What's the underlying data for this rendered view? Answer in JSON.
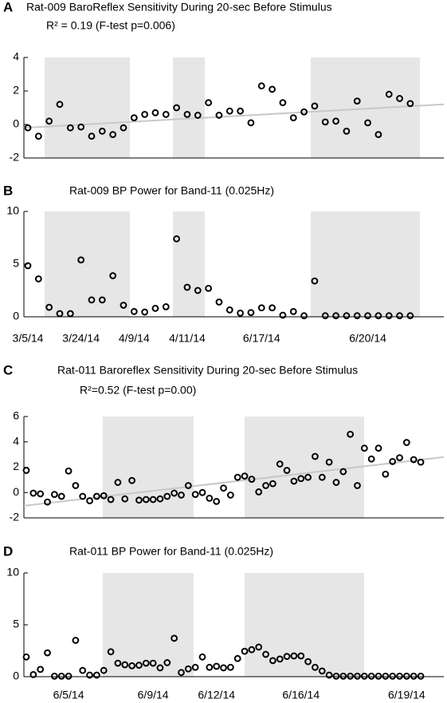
{
  "chart_data": [
    {
      "type": "scatter",
      "panel": "A",
      "title": "Rat-009 BaroReflex Sensitivity During 20-sec Before Stimulus",
      "subtitle": "R² = 0.19 (F-test p=0.006)",
      "values": [
        -0.2,
        -0.7,
        0.2,
        1.2,
        -0.2,
        -0.15,
        -0.7,
        -0.4,
        -0.6,
        -0.2,
        0.4,
        0.6,
        0.7,
        0.6,
        1.0,
        0.6,
        0.55,
        1.3,
        0.55,
        0.8,
        0.8,
        0.1,
        2.3,
        2.1,
        1.3,
        0.4,
        0.75,
        1.1,
        0.15,
        0.2,
        -0.4,
        1.4,
        0.1,
        -0.6,
        1.8,
        1.55,
        1.25
      ],
      "trend": {
        "start": -0.2,
        "end": 1.2,
        "color": "#c8c8c8"
      },
      "ylim": [
        -2,
        4
      ],
      "yticks": [
        -2,
        0,
        2,
        4
      ],
      "color": "#000000"
    },
    {
      "type": "scatter",
      "panel": "B",
      "title": "Rat-009 BP Power for Band-11 (0.025Hz)",
      "categories": [
        "3/5/14",
        null,
        null,
        null,
        null,
        "3/24/14",
        null,
        null,
        null,
        null,
        "4/9/14",
        null,
        null,
        null,
        null,
        "4/11/14",
        null,
        null,
        null,
        null,
        null,
        null,
        "6/17/14",
        null,
        null,
        null,
        null,
        null,
        null,
        null,
        null,
        null,
        "6/20/14",
        null,
        null,
        null,
        null
      ],
      "values": [
        4.85,
        3.6,
        0.9,
        0.3,
        0.3,
        5.4,
        1.6,
        1.6,
        3.9,
        1.1,
        0.5,
        0.45,
        0.8,
        0.95,
        7.4,
        2.8,
        2.5,
        2.7,
        1.4,
        0.65,
        0.35,
        0.4,
        0.85,
        0.85,
        0.15,
        0.5,
        0.1,
        3.4,
        0.1,
        0.1,
        0.1,
        0.1,
        0.1,
        0.1,
        0.1,
        0.1,
        0.1
      ],
      "ylim": [
        0,
        10
      ],
      "yticks": [
        0,
        5,
        10
      ],
      "color": "#000000"
    },
    {
      "type": "scatter",
      "panel": "C",
      "title": "Rat-011 Baroreflex Sensitivity During 20-sec Before Stimulus",
      "subtitle": "R²=0.52 (F-test p=0.00)",
      "values": [
        1.75,
        -0.05,
        -0.1,
        -0.75,
        -0.15,
        -0.3,
        1.7,
        0.55,
        -0.3,
        -0.65,
        -0.3,
        -0.25,
        -0.55,
        0.8,
        -0.5,
        0.95,
        -0.6,
        -0.55,
        -0.55,
        -0.5,
        -0.3,
        -0.05,
        -0.2,
        0.55,
        -0.15,
        0,
        -0.45,
        -0.7,
        0.35,
        -0.2,
        1.2,
        1.3,
        1.05,
        0.05,
        0.55,
        0.7,
        2.25,
        1.75,
        0.9,
        1.1,
        1.2,
        2.85,
        1.2,
        2.4,
        0.8,
        1.65,
        4.6,
        0.55,
        3.5,
        2.65,
        3.5,
        1.45,
        2.45,
        2.75,
        3.95,
        2.6,
        2.4
      ],
      "trend": {
        "start": -1.05,
        "end": 2.8,
        "color": "#c8c8c8"
      },
      "ylim": [
        -2,
        6
      ],
      "yticks": [
        -2,
        0,
        2,
        4,
        6
      ],
      "color": "#000000"
    },
    {
      "type": "scatter",
      "panel": "D",
      "title": "Rat-011 BP Power for Band-11 (0.025Hz)",
      "categories": [
        null,
        null,
        null,
        null,
        null,
        null,
        "6/5/14",
        null,
        null,
        null,
        null,
        null,
        null,
        null,
        null,
        null,
        null,
        null,
        "6/9/14",
        null,
        null,
        null,
        null,
        null,
        null,
        null,
        null,
        "6/12/14",
        null,
        null,
        null,
        null,
        null,
        null,
        null,
        null,
        null,
        null,
        null,
        "6/16/14",
        null,
        null,
        null,
        null,
        null,
        null,
        null,
        null,
        null,
        null,
        null,
        null,
        null,
        null,
        "6/19/14",
        null,
        null
      ],
      "values": [
        1.9,
        0.2,
        0.7,
        2.3,
        0.05,
        0.05,
        0.05,
        3.5,
        0.6,
        0.15,
        0.15,
        0.6,
        2.4,
        1.3,
        1.15,
        1.05,
        1.1,
        1.3,
        1.3,
        0.85,
        1.35,
        3.7,
        0.4,
        0.75,
        0.9,
        1.9,
        0.9,
        1.0,
        0.85,
        0.9,
        1.75,
        2.45,
        2.6,
        2.85,
        2.15,
        1.55,
        1.7,
        1.95,
        2.0,
        2.0,
        1.45,
        0.9,
        0.55,
        0.15,
        0.05,
        0.05,
        0.05,
        0.05,
        0.05,
        0.05,
        0.05,
        0.05,
        0.05,
        0.05,
        0.05,
        0.05,
        0.05
      ],
      "ylim": [
        0,
        10
      ],
      "yticks": [
        0,
        5,
        10
      ],
      "color": "#000000"
    }
  ]
}
